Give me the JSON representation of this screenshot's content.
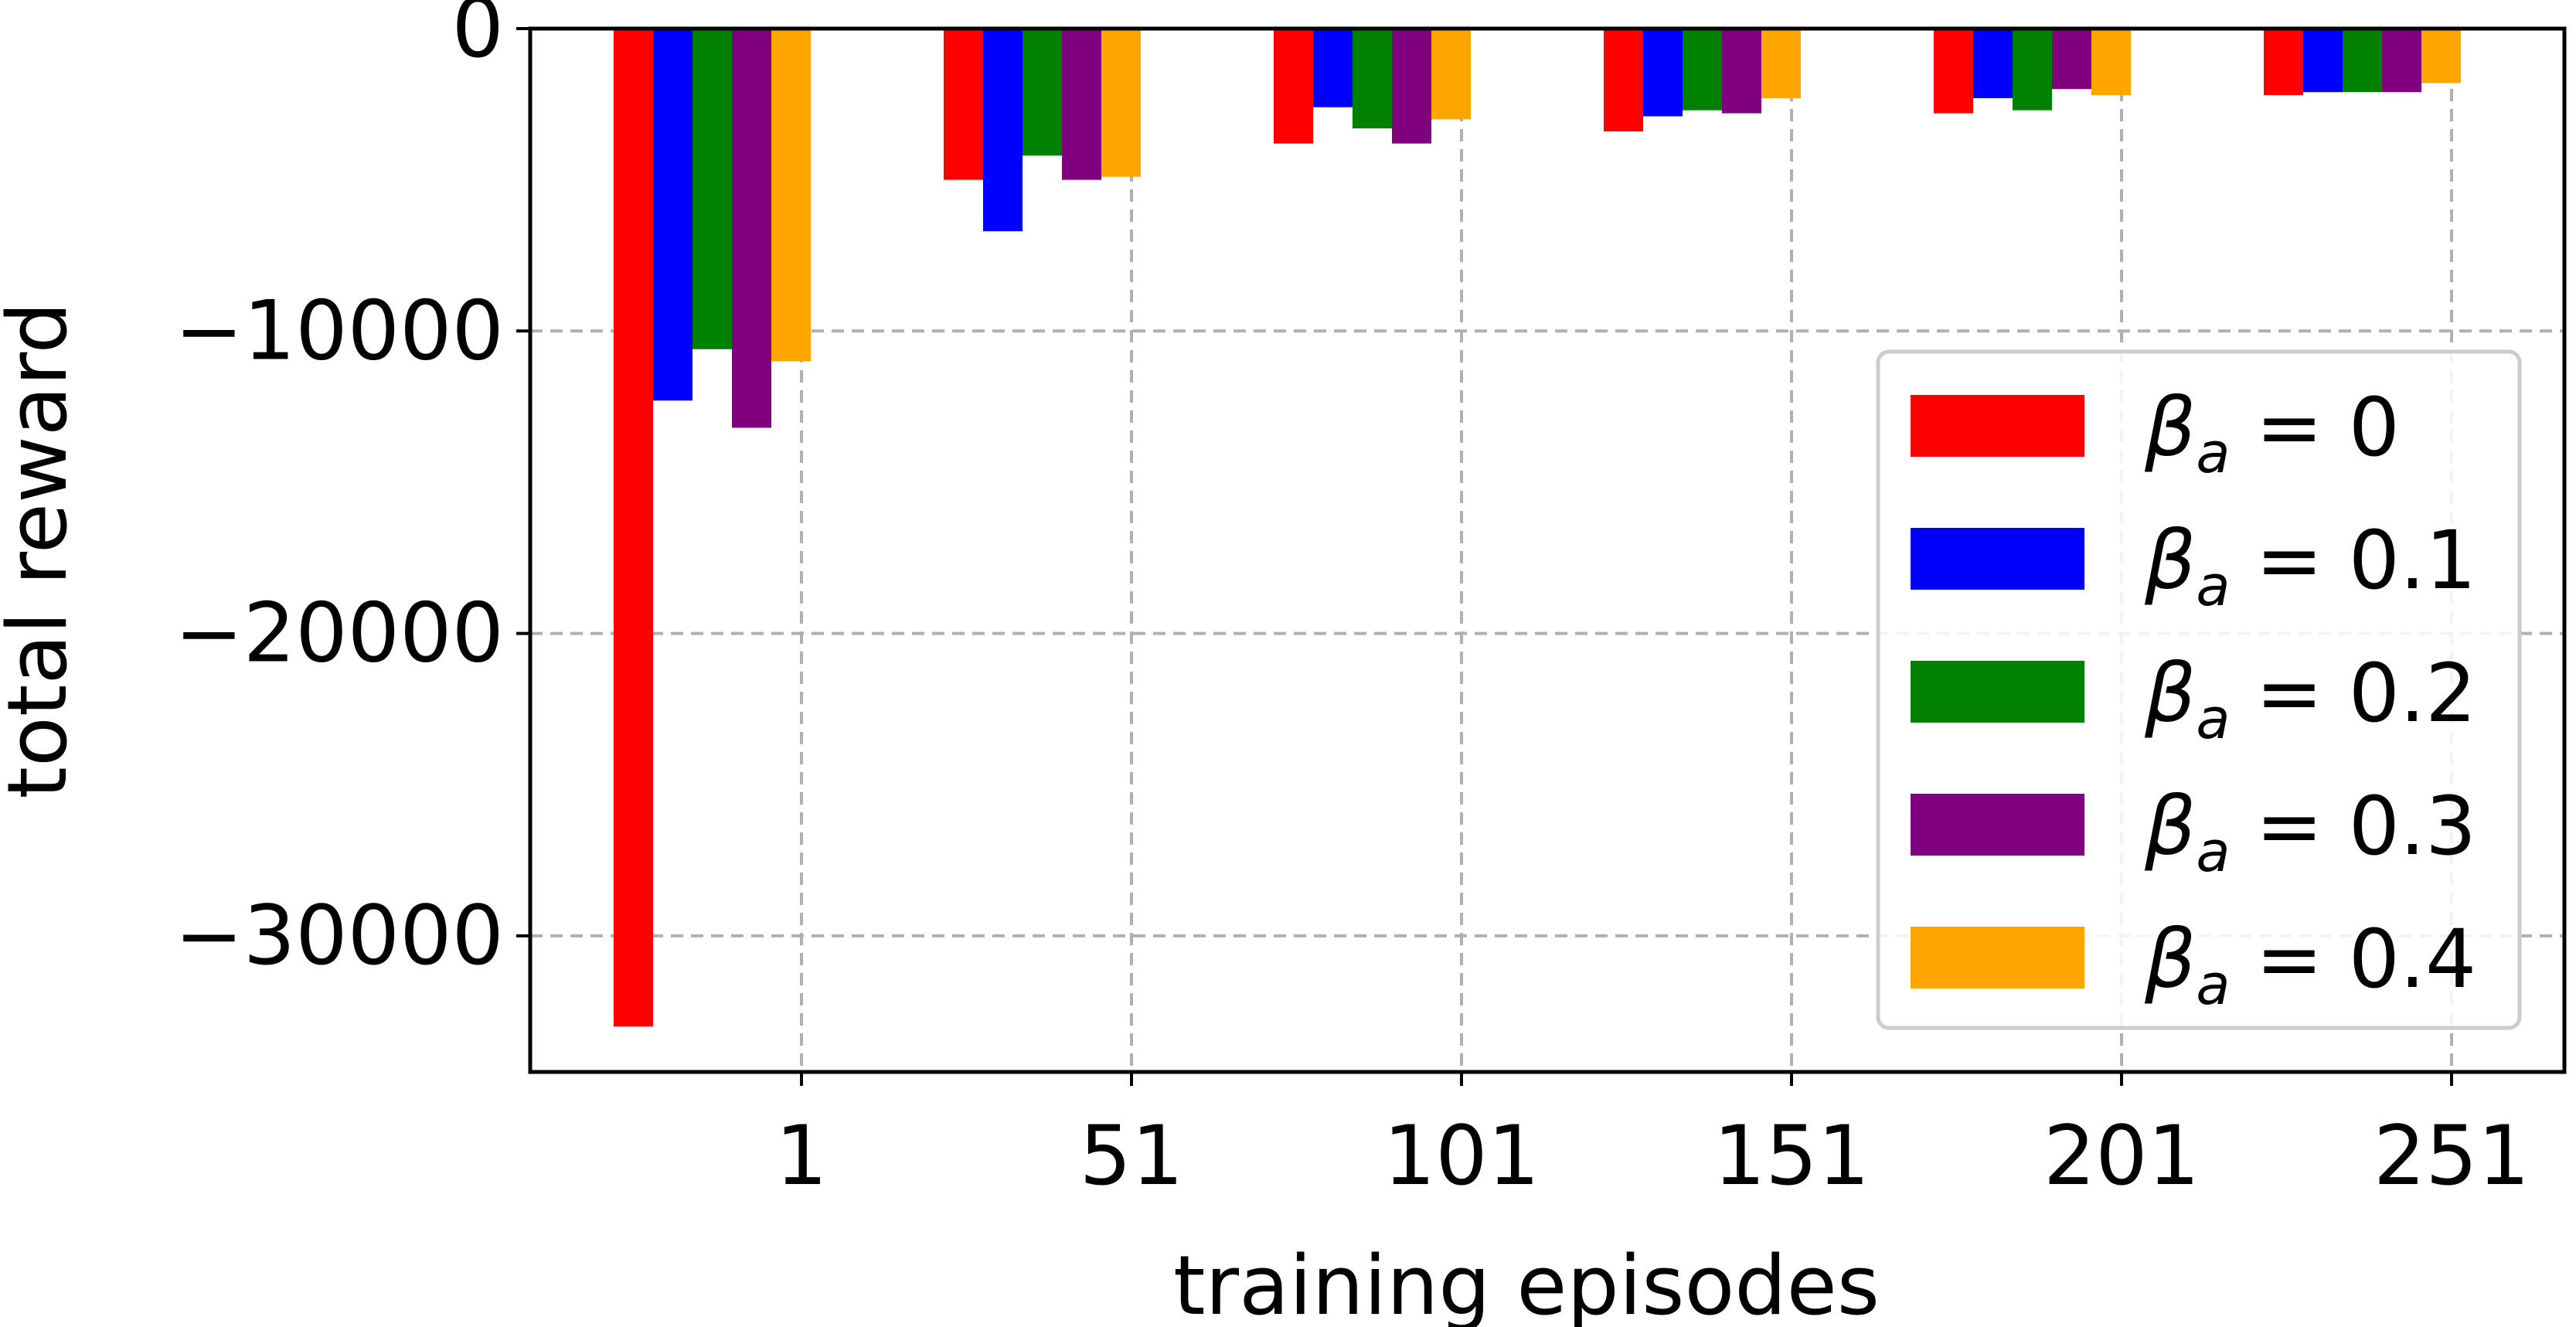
{
  "chart_data": {
    "type": "bar",
    "title": "",
    "xlabel": "training episodes",
    "ylabel": "total reward",
    "categories": [
      "1",
      "51",
      "101",
      "151",
      "201",
      "251"
    ],
    "series": [
      {
        "name_prefix": "β",
        "name_sub": "a",
        "name_suffix": " = 0",
        "color": "#ff0000",
        "values": [
          -33000,
          -5000,
          -3800,
          -3400,
          -2800,
          -2200
        ]
      },
      {
        "name_prefix": "β",
        "name_sub": "a",
        "name_suffix": " = 0.1",
        "color": "#0000ff",
        "values": [
          -12300,
          -6700,
          -2600,
          -2900,
          -2300,
          -2100
        ]
      },
      {
        "name_prefix": "β",
        "name_sub": "a",
        "name_suffix": " = 0.2",
        "color": "#008000",
        "values": [
          -10600,
          -4200,
          -3300,
          -2700,
          -2700,
          -2100
        ]
      },
      {
        "name_prefix": "β",
        "name_sub": "a",
        "name_suffix": " = 0.3",
        "color": "#800080",
        "values": [
          -13200,
          -5000,
          -3800,
          -2800,
          -2000,
          -2100
        ]
      },
      {
        "name_prefix": "β",
        "name_sub": "a",
        "name_suffix": " = 0.4",
        "color": "#ffa500",
        "values": [
          -11000,
          -4900,
          -3000,
          -2300,
          -2200,
          -1800
        ]
      }
    ],
    "ylim": [
      -34500,
      0
    ],
    "yticks": [
      0,
      -10000,
      -20000,
      -30000
    ],
    "ytick_labels": [
      "0",
      "−10000",
      "−20000",
      "−30000"
    ],
    "grid": true,
    "legend_position": "right"
  }
}
